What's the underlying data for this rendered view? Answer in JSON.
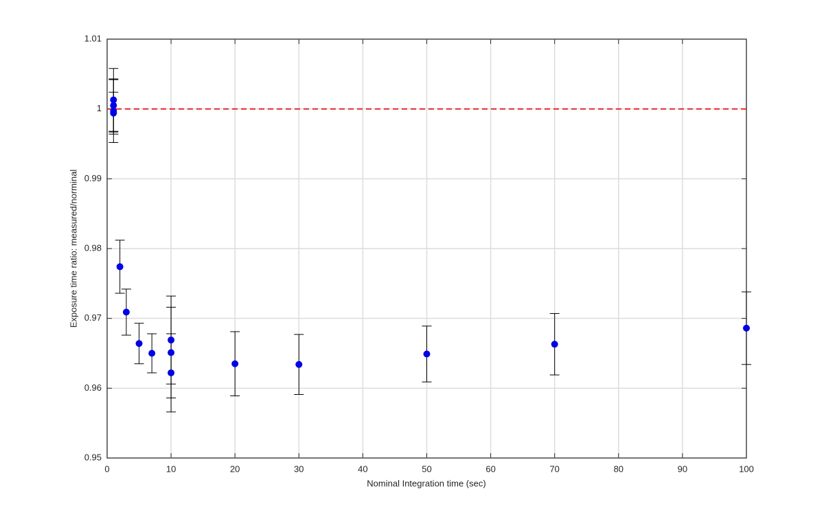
{
  "chart_data": {
    "type": "errorbar",
    "xlabel": "Nominal Integration time (sec)",
    "ylabel": "Exposure time ratio: measured/norminal",
    "xlim": [
      0,
      100
    ],
    "xticks": [
      0,
      10,
      20,
      30,
      40,
      50,
      60,
      70,
      80,
      90,
      100
    ],
    "ylim": [
      0.95,
      1.01
    ],
    "yticks": [
      0.95,
      0.96,
      0.97,
      0.98,
      0.99,
      1,
      1.01
    ],
    "grid": true,
    "reference_line": {
      "value": 1,
      "color": "#e41a1c"
    },
    "series": [
      {
        "color": "#0000e6",
        "x": [
          1,
          1,
          1,
          1,
          2,
          3,
          5,
          7,
          10,
          10,
          10,
          20,
          30,
          50,
          70,
          100
        ],
        "values": [
          1.0013,
          1.0005,
          0.9997,
          0.9994,
          0.9774,
          0.9709,
          0.9664,
          0.965,
          0.9669,
          0.9651,
          0.9622,
          0.9635,
          0.9634,
          0.9649,
          0.9663,
          0.9686
        ],
        "errors": [
          0.0045,
          0.0038,
          0.0045,
          0.003,
          0.0038,
          0.0033,
          0.0029,
          0.0028,
          0.0063,
          0.0065,
          0.0056,
          0.0046,
          0.0043,
          0.004,
          0.0044,
          0.0052
        ]
      }
    ]
  }
}
